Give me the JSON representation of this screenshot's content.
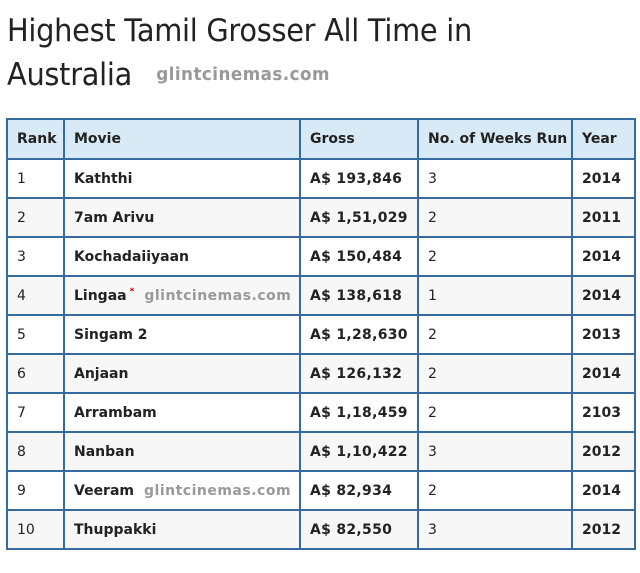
{
  "page": {
    "title_line1": "Highest Tamil Grosser All Time in",
    "title_line2": "Australia",
    "watermark": "glintcinemas.com"
  },
  "table": {
    "headers": [
      "Rank",
      "Movie",
      "Gross",
      "No. of Weeks Run",
      "Year"
    ],
    "rows": [
      {
        "rank": "1",
        "movie": "Kaththi",
        "gross": "A$ 193,846",
        "weeks": "3",
        "year": "2014"
      },
      {
        "rank": "2",
        "movie": "7am Arivu",
        "gross": "A$ 1,51,029",
        "weeks": "2",
        "year": "2011"
      },
      {
        "rank": "3",
        "movie": "Kochadaiiyaan",
        "gross": "A$ 150,484",
        "weeks": "2",
        "year": "2014"
      },
      {
        "rank": "4",
        "movie": "Lingaa",
        "asterisk": "*",
        "watermark": "glintcinemas.com",
        "gross": "A$ 138,618",
        "weeks": "1",
        "year": "2014"
      },
      {
        "rank": "5",
        "movie": "Singam 2",
        "gross": "A$ 1,28,630",
        "weeks": "2",
        "year": "2013"
      },
      {
        "rank": "6",
        "movie": "Anjaan",
        "gross": "A$ 126,132",
        "weeks": "2",
        "year": "2014"
      },
      {
        "rank": "7",
        "movie": "Arrambam",
        "gross": "A$ 1,18,459",
        "weeks": "2",
        "year": "2103"
      },
      {
        "rank": "8",
        "movie": "Nanban",
        "gross": "A$ 1,10,422",
        "weeks": "3",
        "year": "2012"
      },
      {
        "rank": "9",
        "movie": "Veeram",
        "watermark": "glintcinemas.com",
        "gross": "A$ 82,934",
        "weeks": "2",
        "year": "2014"
      },
      {
        "rank": "10",
        "movie": "Thuppakki",
        "gross": "A$ 82,550",
        "weeks": "3",
        "year": "2012"
      }
    ]
  },
  "colors": {
    "header_bg": "#d8eaf6",
    "border": "#356b9e",
    "gross_text": "#0a8a0a",
    "year_text": "#14147a",
    "asterisk": "#cc0000",
    "watermark": "#999999"
  }
}
